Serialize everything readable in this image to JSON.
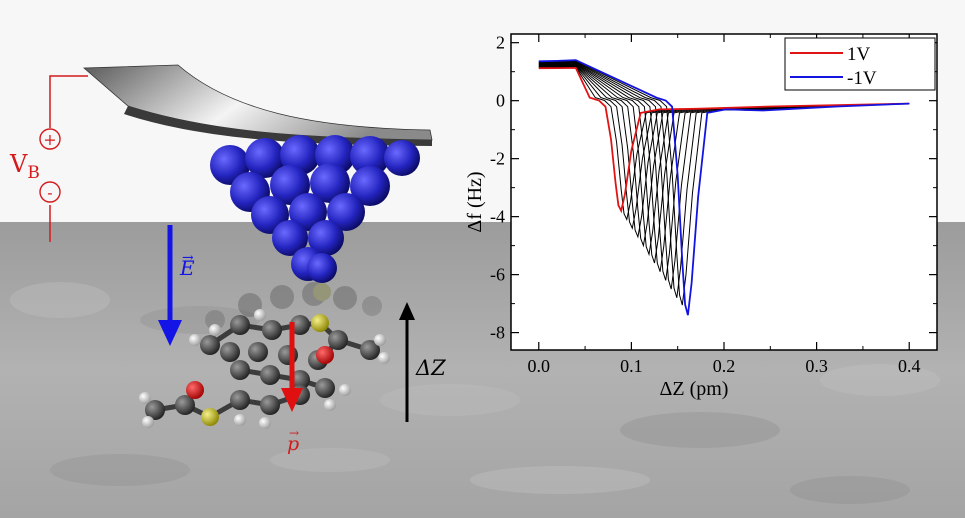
{
  "scene": {
    "bias_label": "V",
    "bias_subscript": "B",
    "plus_symbol": "+",
    "minus_symbol": "-",
    "field_label": "E",
    "dipole_label": "p",
    "dz_label": "ΔZ",
    "colors": {
      "circuit": "#d41a1a",
      "tip_atoms": "#1a1ac8",
      "field_arrow": "#1414e6",
      "dipole_arrow": "#e01010",
      "dz_arrow": "#000000",
      "surface_top": "#f7f7f7",
      "surface": "#a8a8a8"
    }
  },
  "chart_data": {
    "type": "line",
    "title": "",
    "xlabel": "ΔZ (pm)",
    "ylabel": "Δf  (Hz)",
    "xlim": [
      -0.03,
      0.43
    ],
    "ylim": [
      -8.6,
      2.3
    ],
    "xticks": [
      "0.0",
      "0.1",
      "0.2",
      "0.3",
      "0.4"
    ],
    "yticks": [
      "2",
      "0",
      "-2",
      "-4",
      "-6",
      "-8"
    ],
    "legend_position": "top-right",
    "series": [
      {
        "name": "1V",
        "color": "#e01414",
        "x_shift": 0.0,
        "depth": -3.8
      },
      {
        "color": "#000000",
        "x_shift": 0.006,
        "depth": -4.1
      },
      {
        "color": "#000000",
        "x_shift": 0.012,
        "depth": -4.4
      },
      {
        "color": "#000000",
        "x_shift": 0.018,
        "depth": -4.7
      },
      {
        "color": "#000000",
        "x_shift": 0.024,
        "depth": -5.0
      },
      {
        "color": "#000000",
        "x_shift": 0.03,
        "depth": -5.3
      },
      {
        "color": "#000000",
        "x_shift": 0.036,
        "depth": -5.6
      },
      {
        "color": "#000000",
        "x_shift": 0.042,
        "depth": -5.9
      },
      {
        "color": "#000000",
        "x_shift": 0.048,
        "depth": -6.2
      },
      {
        "color": "#000000",
        "x_shift": 0.054,
        "depth": -6.5
      },
      {
        "color": "#000000",
        "x_shift": 0.06,
        "depth": -6.8
      },
      {
        "color": "#000000",
        "x_shift": 0.066,
        "depth": -7.05
      },
      {
        "name": "-1V",
        "color": "#1414e0",
        "x_shift": 0.072,
        "depth": -7.4
      }
    ],
    "curve_shape": {
      "x": [
        0.0,
        0.02,
        0.04,
        0.055,
        0.065,
        0.072,
        0.078,
        0.083,
        0.086,
        0.089,
        0.093,
        0.1,
        0.11,
        0.13,
        0.17,
        0.25,
        0.4
      ],
      "y_fraction": [
        -0.35,
        -0.36,
        -0.38,
        -0.42,
        -0.3,
        -0.05,
        0.35,
        0.75,
        0.95,
        1.0,
        0.85,
        0.45,
        0.2,
        0.11,
        0.1,
        0.07,
        0.03
      ],
      "start_offset_step": 0.02
    }
  }
}
